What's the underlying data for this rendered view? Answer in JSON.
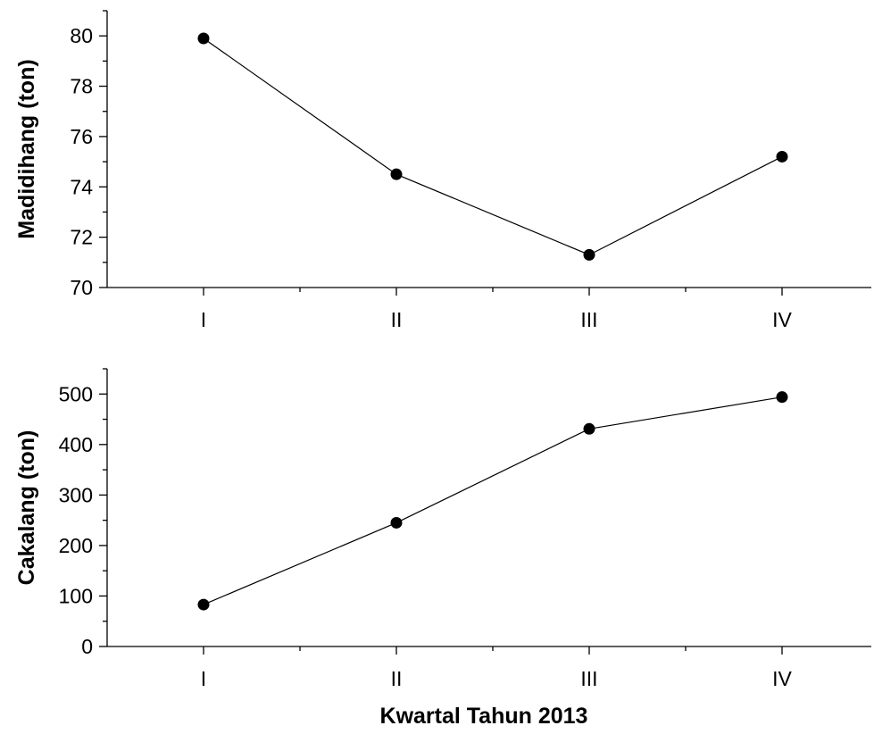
{
  "chart_data": [
    {
      "type": "line",
      "categories": [
        "I",
        "II",
        "III",
        "IV"
      ],
      "values": [
        79.9,
        74.5,
        71.3,
        75.2
      ],
      "xlabel": "",
      "ylabel": "Madidihang (ton)",
      "ylim": [
        70,
        81
      ],
      "yticks": [
        70,
        72,
        74,
        76,
        78,
        80
      ],
      "grid": false,
      "marker": "filled-circle",
      "color": "#000000"
    },
    {
      "type": "line",
      "categories": [
        "I",
        "II",
        "III",
        "IV"
      ],
      "values": [
        83,
        245,
        431,
        494
      ],
      "xlabel": "Kwartal Tahun 2013",
      "ylabel": "Cakalang (ton)",
      "ylim": [
        0,
        550
      ],
      "yticks": [
        0,
        100,
        200,
        300,
        400,
        500
      ],
      "grid": false,
      "marker": "filled-circle",
      "color": "#000000"
    }
  ]
}
